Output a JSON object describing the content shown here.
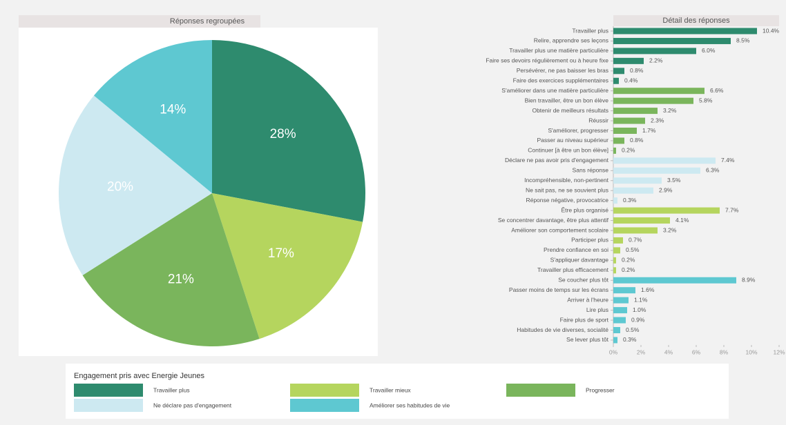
{
  "chart_data": [
    {
      "type": "pie",
      "title": "Réponses regroupées",
      "legend_title": "Engagement pris avec Energie Jeunes",
      "categories": [
        "Travailler plus",
        "Travailler mieux",
        "Progresser",
        "Ne déclare pas d'engagement",
        "Améliorer ses habitudes de vie"
      ],
      "values": [
        28,
        17,
        21,
        20,
        14
      ],
      "value_labels": [
        "28%",
        "17%",
        "21%",
        "20%",
        "14%"
      ],
      "colors": [
        "#2e8b6e",
        "#b5d55e",
        "#7ab55c",
        "#cde9f1",
        "#5ec8d1"
      ]
    },
    {
      "type": "hbar",
      "title": "Détail des réponses",
      "categories": [
        "Travailler plus",
        "Relire, apprendre ses leçons",
        "Travailler plus une matière particulière",
        "Faire ses devoirs régulièrement ou à heure fixe",
        "Persévérer, ne pas baisser les bras",
        "Faire des exercices supplémentaires",
        "S'améliorer dans une matière particulière",
        "Bien travailler, être un bon élève",
        "Obtenir de meilleurs résultats",
        "Réussir",
        "S'améliorer, progresser",
        "Passer au niveau supérieur",
        "Continuer [à être un bon élève]",
        "Déclare ne pas avoir pris d'engagement",
        "Sans réponse",
        "Incompréhensible, non-pertinent",
        "Ne sait pas, ne se souvient plus",
        "Réponse négative, provocatrice",
        "Être plus organisé",
        "Se concentrer davantage, être plus attentif",
        "Améliorer son comportement scolaire",
        "Participer plus",
        "Prendre confiance en soi",
        "S'appliquer davantage",
        "Travailler plus efficacement",
        "Se coucher plus tôt",
        "Passer moins de temps sur les écrans",
        "Arriver à l'heure",
        "Lire plus",
        "Faire plus de sport",
        "Habitudes de vie diverses, socialité",
        "Se lever plus tôt"
      ],
      "values": [
        10.4,
        8.5,
        6.0,
        2.2,
        0.8,
        0.4,
        6.6,
        5.8,
        3.2,
        2.3,
        1.7,
        0.8,
        0.2,
        7.4,
        6.3,
        3.5,
        2.9,
        0.3,
        7.7,
        4.1,
        3.2,
        0.7,
        0.5,
        0.2,
        0.2,
        8.9,
        1.6,
        1.1,
        1.0,
        0.9,
        0.5,
        0.3
      ],
      "value_labels": [
        "10.4%",
        "8.5%",
        "6.0%",
        "2.2%",
        "0.8%",
        "0.4%",
        "6.6%",
        "5.8%",
        "3.2%",
        "2.3%",
        "1.7%",
        "0.8%",
        "0.2%",
        "7.4%",
        "6.3%",
        "3.5%",
        "2.9%",
        "0.3%",
        "7.7%",
        "4.1%",
        "3.2%",
        "0.7%",
        "0.5%",
        "0.2%",
        "0.2%",
        "8.9%",
        "1.6%",
        "1.1%",
        "1.0%",
        "0.9%",
        "0.5%",
        "0.3%"
      ],
      "colors": [
        "#2e8b6e",
        "#2e8b6e",
        "#2e8b6e",
        "#2e8b6e",
        "#2e8b6e",
        "#2e8b6e",
        "#7ab55c",
        "#7ab55c",
        "#7ab55c",
        "#7ab55c",
        "#7ab55c",
        "#7ab55c",
        "#7ab55c",
        "#cde9f1",
        "#cde9f1",
        "#cde9f1",
        "#cde9f1",
        "#cde9f1",
        "#b5d55e",
        "#b5d55e",
        "#b5d55e",
        "#b5d55e",
        "#b5d55e",
        "#b5d55e",
        "#b5d55e",
        "#5ec8d1",
        "#5ec8d1",
        "#5ec8d1",
        "#5ec8d1",
        "#5ec8d1",
        "#5ec8d1",
        "#5ec8d1"
      ],
      "xlim": [
        0,
        12
      ],
      "xticks": [
        {
          "value": 0,
          "label": "0%"
        },
        {
          "value": 2,
          "label": "2%"
        },
        {
          "value": 4,
          "label": "4%"
        },
        {
          "value": 6,
          "label": "6%"
        },
        {
          "value": 8,
          "label": "8%"
        },
        {
          "value": 10,
          "label": "10%"
        },
        {
          "value": 12,
          "label": "12%"
        }
      ]
    }
  ]
}
